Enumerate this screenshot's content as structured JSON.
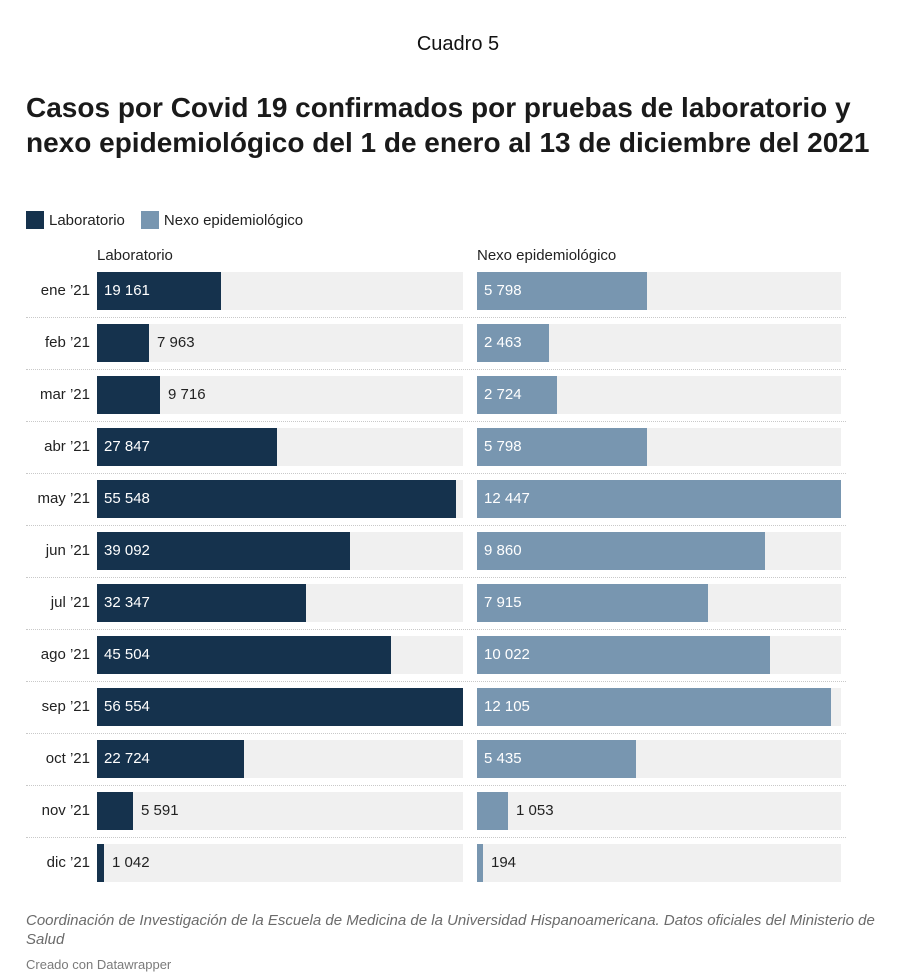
{
  "top_caption": "Cuadro 5",
  "source": "Coordinación de Investigación de la Escuela de Medicina de la Universidad Hispanoamericana. Datos oficiales del Ministerio de Salud",
  "credit": "Creado con Datawrapper",
  "colors": {
    "laboratorio": "#15324d",
    "nexo": "#7896b0",
    "track": "#f0f0f0"
  },
  "chart_data": {
    "type": "bar",
    "orientation": "horizontal",
    "title": "Casos por Covid 19 confirmados por pruebas de laboratorio y nexo epidemiológico del 1 de enero al 13 de diciembre del 2021",
    "legend": [
      "Laboratorio",
      "Nexo epidemiológico"
    ],
    "legend_position": "top-left",
    "categories": [
      "ene ’21",
      "feb ’21",
      "mar ’21",
      "abr ’21",
      "may ’21",
      "jun ’21",
      "jul ’21",
      "ago ’21",
      "sep ’21",
      "oct ’21",
      "nov ’21",
      "dic ’21"
    ],
    "series": [
      {
        "name": "Laboratorio",
        "values": [
          19161,
          7963,
          9716,
          27847,
          55548,
          39092,
          32347,
          45504,
          56554,
          22724,
          5591,
          1042
        ],
        "labels": [
          "19 161",
          "7 963",
          "9 716",
          "27 847",
          "55 548",
          "39 092",
          "32 347",
          "45 504",
          "56 554",
          "22 724",
          "5 591",
          "1 042"
        ]
      },
      {
        "name": "Nexo epidemiológico",
        "values": [
          5798,
          2463,
          2724,
          5798,
          12447,
          9860,
          7915,
          10022,
          12105,
          5435,
          1053,
          194
        ],
        "labels": [
          "5 798",
          "2 463",
          "2 724",
          "5 798",
          "12 447",
          "9 860",
          "7 915",
          "10 022",
          "12 105",
          "5 435",
          "1 053",
          "194"
        ]
      }
    ],
    "xlim": [
      [
        0,
        56554
      ],
      [
        0,
        12447
      ]
    ],
    "grid": false
  }
}
